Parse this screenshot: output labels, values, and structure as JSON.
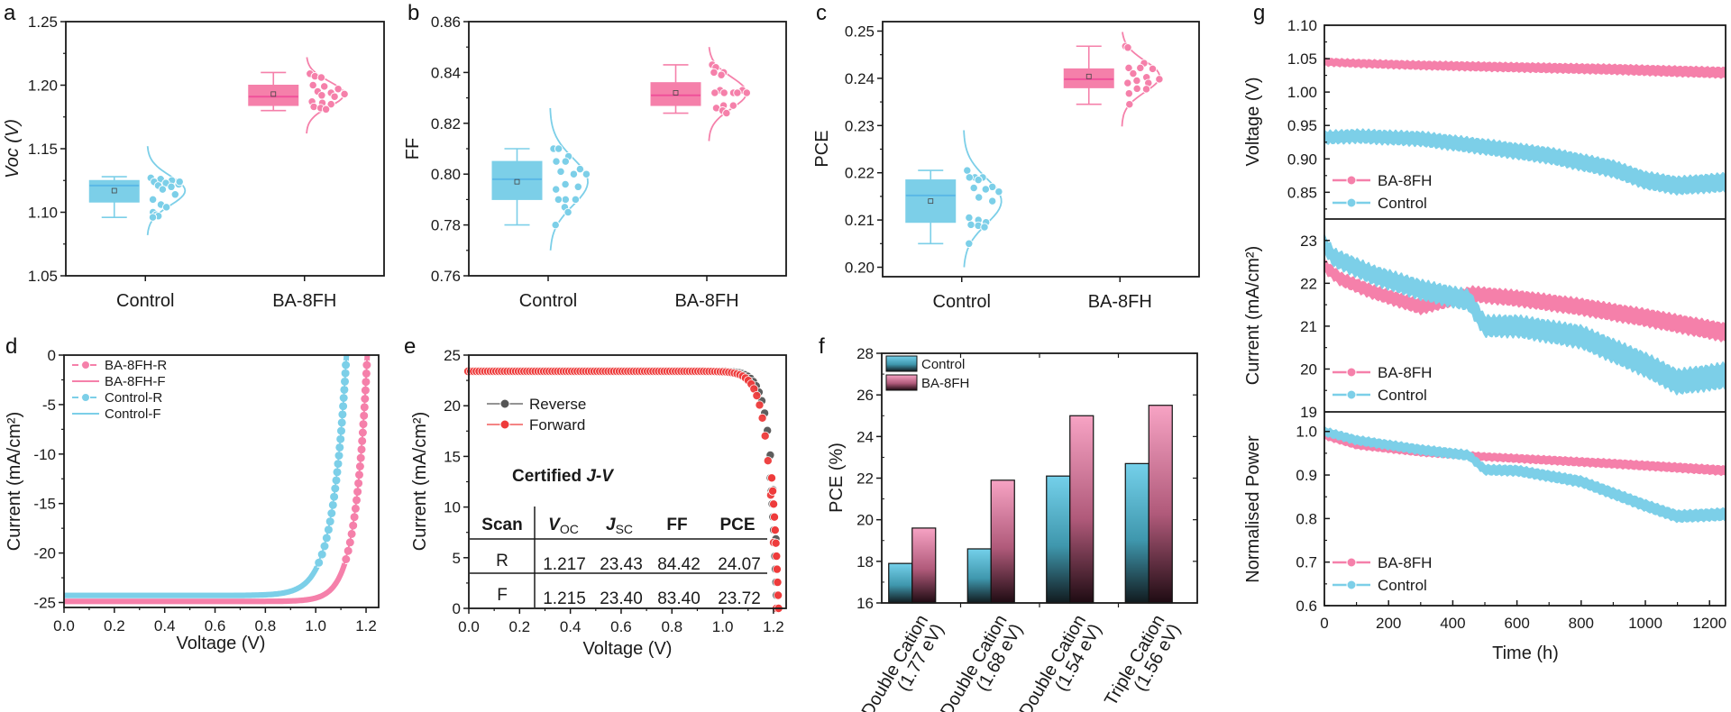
{
  "colors": {
    "control": "#7ccfe8",
    "control_line": "#5ab8e6",
    "ba8fh": "#f580aa",
    "ba8fh_line": "#f0509a",
    "reverse": "#555555",
    "forward": "#ee3b3b",
    "axis": "#1a1a1a"
  },
  "chart_data": [
    {
      "panel": "a",
      "type": "box",
      "ylabel": "Voc (V)",
      "ylim": [
        1.05,
        1.25
      ],
      "yticks": [
        "1.05",
        "1.10",
        "1.15",
        "1.20",
        "1.25"
      ],
      "categories": [
        "Control",
        "BA-8FH"
      ],
      "series": [
        {
          "name": "Control",
          "min": 1.096,
          "q1": 1.108,
          "median": 1.121,
          "mean": 1.117,
          "q3": 1.125,
          "max": 1.128,
          "points": [
            1.127,
            1.126,
            1.125,
            1.124,
            1.123,
            1.122,
            1.121,
            1.12,
            1.124,
            1.118,
            1.114,
            1.11,
            1.106,
            1.104,
            1.1,
            1.098,
            1.097,
            1.096
          ],
          "dist_range": [
            1.082,
            1.152
          ]
        },
        {
          "name": "BA-8FH",
          "min": 1.18,
          "q1": 1.184,
          "median": 1.191,
          "mean": 1.193,
          "q3": 1.2,
          "max": 1.21,
          "points": [
            1.209,
            1.207,
            1.206,
            1.2,
            1.199,
            1.197,
            1.195,
            1.194,
            1.193,
            1.192,
            1.191,
            1.187,
            1.186,
            1.185,
            1.183,
            1.182,
            1.181
          ],
          "dist_range": [
            1.162,
            1.222
          ]
        }
      ]
    },
    {
      "panel": "b",
      "type": "box",
      "ylabel": "FF",
      "ylim": [
        0.76,
        0.86
      ],
      "yticks": [
        "0.76",
        "0.78",
        "0.80",
        "0.82",
        "0.84",
        "0.86"
      ],
      "categories": [
        "Control",
        "BA-8FH"
      ],
      "series": [
        {
          "name": "Control",
          "min": 0.78,
          "q1": 0.79,
          "median": 0.798,
          "mean": 0.797,
          "q3": 0.805,
          "max": 0.81,
          "points": [
            0.81,
            0.81,
            0.807,
            0.805,
            0.805,
            0.802,
            0.801,
            0.8,
            0.8,
            0.796,
            0.795,
            0.794,
            0.79,
            0.79,
            0.79,
            0.787,
            0.785,
            0.78
          ],
          "dist_range": [
            0.77,
            0.826
          ]
        },
        {
          "name": "BA-8FH",
          "min": 0.824,
          "q1": 0.827,
          "median": 0.831,
          "mean": 0.832,
          "q3": 0.836,
          "max": 0.843,
          "points": [
            0.843,
            0.842,
            0.84,
            0.84,
            0.839,
            0.833,
            0.833,
            0.832,
            0.832,
            0.832,
            0.832,
            0.832,
            0.827,
            0.827,
            0.826,
            0.825,
            0.824
          ],
          "dist_range": [
            0.813,
            0.85
          ]
        }
      ]
    },
    {
      "panel": "c",
      "type": "box",
      "ylabel": "PCE",
      "ylim": [
        0.198,
        0.252
      ],
      "yticks": [
        "0.20",
        "0.21",
        "0.22",
        "0.23",
        "0.24",
        "0.25"
      ],
      "categories": [
        "Control",
        "BA-8FH"
      ],
      "series": [
        {
          "name": "Control",
          "min": 0.205,
          "q1": 0.2095,
          "median": 0.2152,
          "mean": 0.214,
          "q3": 0.2185,
          "max": 0.2205,
          "points": [
            0.2205,
            0.219,
            0.219,
            0.219,
            0.2185,
            0.217,
            0.2168,
            0.2165,
            0.216,
            0.2148,
            0.214,
            0.2105,
            0.21,
            0.2095,
            0.209,
            0.2088,
            0.2085,
            0.205
          ],
          "dist_range": [
            0.2,
            0.229
          ]
        },
        {
          "name": "BA-8FH",
          "min": 0.2345,
          "q1": 0.238,
          "median": 0.2398,
          "mean": 0.2404,
          "q3": 0.242,
          "max": 0.2468,
          "points": [
            0.2468,
            0.2465,
            0.2432,
            0.2422,
            0.2422,
            0.242,
            0.241,
            0.2402,
            0.2398,
            0.2395,
            0.239,
            0.239,
            0.2378,
            0.2377,
            0.2368,
            0.2345
          ],
          "dist_range": [
            0.2298,
            0.2498
          ]
        }
      ]
    },
    {
      "panel": "d",
      "type": "line",
      "xlabel": "Voltage (V)",
      "ylabel": "Current (mA/cm2)",
      "xlim": [
        0,
        1.25
      ],
      "ylim": [
        -25.5,
        0
      ],
      "xticks": [
        "0.0",
        "0.2",
        "0.4",
        "0.6",
        "0.8",
        "1.0",
        "1.2"
      ],
      "yticks": [
        "-25",
        "-20",
        "-15",
        "-10",
        "-5",
        "0"
      ],
      "legend": [
        "BA-8FH-R",
        "BA-8FH-F",
        "Control-R",
        "Control-F"
      ],
      "series": [
        {
          "name": "BA-8FH-R",
          "jsc": 24.9,
          "voc": 1.205,
          "shape": 0.048,
          "markers": true
        },
        {
          "name": "BA-8FH-F",
          "jsc": 24.7,
          "voc": 1.205,
          "shape": 0.048,
          "markers": false
        },
        {
          "name": "Control-R",
          "jsc": 24.3,
          "voc": 1.122,
          "shape": 0.055,
          "markers": true
        },
        {
          "name": "Control-F",
          "jsc": 24.1,
          "voc": 1.122,
          "shape": 0.055,
          "markers": false
        }
      ]
    },
    {
      "panel": "e",
      "type": "line",
      "xlabel": "Voltage (V)",
      "ylabel": "Current (mA/cm2)",
      "xlim": [
        0,
        1.25
      ],
      "ylim": [
        0,
        25
      ],
      "xticks": [
        "0.0",
        "0.2",
        "0.4",
        "0.6",
        "0.8",
        "1.0",
        "1.2"
      ],
      "yticks": [
        "0",
        "5",
        "10",
        "15",
        "20",
        "25"
      ],
      "legend": [
        "Reverse",
        "Forward"
      ],
      "series": [
        {
          "name": "Reverse",
          "jsc": 23.43,
          "voc": 1.217,
          "shape": 0.032
        },
        {
          "name": "Forward",
          "jsc": 23.4,
          "voc": 1.215,
          "shape": 0.034
        }
      ],
      "table": {
        "title": "Certified",
        "title_italic": "J-V",
        "headers": [
          "Scan",
          "V",
          "OC",
          "J",
          "SC",
          "FF",
          "PCE"
        ],
        "rows": [
          [
            "R",
            "1.217",
            "23.43",
            "84.42",
            "24.07"
          ],
          [
            "F",
            "1.215",
            "23.40",
            "83.40",
            "23.72"
          ]
        ]
      }
    },
    {
      "panel": "f",
      "type": "bar",
      "ylabel": "PCE (%)",
      "ylim": [
        16,
        28
      ],
      "yticks": [
        "16",
        "18",
        "20",
        "22",
        "24",
        "26",
        "28"
      ],
      "categories": [
        [
          "Double Cation",
          "(1.77 eV)"
        ],
        [
          "Double Cation",
          "(1.68 eV)"
        ],
        [
          "Double Cation",
          "(1.54 eV)"
        ],
        [
          "Triple Cation",
          "(1.56 eV)"
        ]
      ],
      "legend": [
        "Control",
        "BA-8FH"
      ],
      "series": [
        {
          "name": "Control",
          "values": [
            17.9,
            18.6,
            22.1,
            22.7
          ]
        },
        {
          "name": "BA-8FH",
          "values": [
            19.6,
            21.9,
            25.0,
            25.5
          ]
        }
      ]
    },
    {
      "panel": "g",
      "type": "line",
      "xlabel": "Time (h)",
      "xlim": [
        0,
        1250
      ],
      "xticks": [
        "0",
        "200",
        "400",
        "600",
        "800",
        "1000",
        "1200"
      ],
      "subplots": [
        {
          "ylabel": "Voltage (V)",
          "ylim": [
            0.81,
            1.1
          ],
          "yticks": [
            "0.85",
            "0.90",
            "0.95",
            "1.00",
            "1.05",
            "1.10"
          ],
          "legend": [
            "BA-8FH",
            "Control"
          ],
          "series": [
            {
              "name": "BA-8FH",
              "x": [
                0,
                100,
                300,
                500,
                700,
                900,
                1100,
                1250
              ],
              "y": [
                1.045,
                1.043,
                1.04,
                1.038,
                1.036,
                1.034,
                1.031,
                1.029
              ],
              "spread": 0.009
            },
            {
              "name": "Control",
              "x": [
                0,
                100,
                300,
                500,
                700,
                800,
                900,
                1000,
                1100,
                1250
              ],
              "y": [
                0.932,
                0.934,
                0.93,
                0.918,
                0.905,
                0.895,
                0.885,
                0.868,
                0.86,
                0.865
              ],
              "spread": 0.016
            }
          ]
        },
        {
          "ylabel": "Current (mA/cm2)",
          "ylim": [
            19,
            23.5
          ],
          "yticks": [
            "19",
            "20",
            "21",
            "22",
            "23"
          ],
          "legend": [
            "BA-8FH",
            "Control"
          ],
          "series": [
            {
              "name": "BA-8FH",
              "x": [
                0,
                50,
                150,
                300,
                460,
                600,
                800,
                1000,
                1250
              ],
              "y": [
                22.4,
                22.1,
                21.8,
                21.45,
                21.75,
                21.65,
                21.45,
                21.2,
                20.85
              ],
              "spread": 0.25
            },
            {
              "name": "Control",
              "x": [
                0,
                30,
                150,
                300,
                450,
                500,
                600,
                800,
                1000,
                1100,
                1250
              ],
              "y": [
                22.9,
                22.6,
                22.2,
                21.85,
                21.6,
                21.0,
                21.0,
                20.75,
                20.1,
                19.7,
                19.85
              ],
              "spread": 0.35
            }
          ]
        },
        {
          "ylabel": "Normalised Power",
          "ylim": [
            0.6,
            1.045
          ],
          "yticks": [
            "0.6",
            "0.7",
            "0.8",
            "0.9",
            "1.0"
          ],
          "legend": [
            "BA-8FH",
            "Control"
          ],
          "series": [
            {
              "name": "BA-8FH",
              "x": [
                0,
                100,
                300,
                500,
                700,
                900,
                1100,
                1250
              ],
              "y": [
                0.99,
                0.968,
                0.952,
                0.942,
                0.934,
                0.926,
                0.917,
                0.91
              ],
              "spread": 0.012
            },
            {
              "name": "Control",
              "x": [
                0,
                100,
                300,
                450,
                500,
                600,
                800,
                1000,
                1100,
                1250
              ],
              "y": [
                1.0,
                0.98,
                0.958,
                0.945,
                0.912,
                0.91,
                0.885,
                0.83,
                0.805,
                0.81
              ],
              "spread": 0.016
            }
          ]
        }
      ]
    }
  ],
  "panels": {
    "a": {
      "letter": "a",
      "ylabel": "Voc (V)"
    },
    "b": {
      "letter": "b",
      "ylabel": "FF"
    },
    "c": {
      "letter": "c",
      "ylabel": "PCE"
    },
    "d": {
      "letter": "d",
      "ylabel": "Current (mA/cm²)",
      "xlabel": "Voltage (V)"
    },
    "e": {
      "letter": "e",
      "ylabel": "Current (mA/cm²)",
      "xlabel": "Voltage (V)"
    },
    "f": {
      "letter": "f",
      "ylabel": "PCE (%)"
    },
    "g": {
      "letter": "g",
      "xlabel": "Time (h)",
      "ylabel_top": "Voltage (V)",
      "ylabel_mid": "Current (mA/cm²)",
      "ylabel_bot": "Normalised Power"
    }
  }
}
